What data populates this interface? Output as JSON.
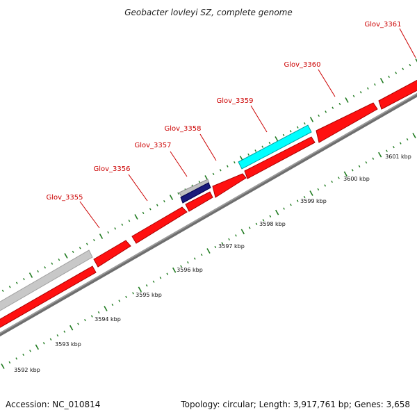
{
  "title": "Geobacter lovleyi SZ, complete genome",
  "footer": {
    "accession": "Accession: NC_010814",
    "summary": "Topology: circular; Length: 3,917,761 bp; Genes: 3,658"
  },
  "colors": {
    "background": "#ffffff",
    "backbone": "#888888",
    "cds_forward": "#ff0000",
    "gene_gray": "#c8c8c8",
    "gene_navy": "#1a1a7a",
    "gene_cyan": "#00ffff",
    "gene_label": "#cc0000",
    "tick": "#1e7a1e"
  },
  "gene_labels": [
    "Glov_3355",
    "Glov_3356",
    "Glov_3357",
    "Glov_3358",
    "Glov_3359",
    "Glov_3360",
    "Glov_3361"
  ],
  "kbp_labels": [
    "3592 kbp",
    "3593 kbp",
    "3594 kbp",
    "3595 kbp",
    "3596 kbp",
    "3597 kbp",
    "3598 kbp",
    "3599 kbp",
    "3600 kbp",
    "3601 kbp"
  ]
}
